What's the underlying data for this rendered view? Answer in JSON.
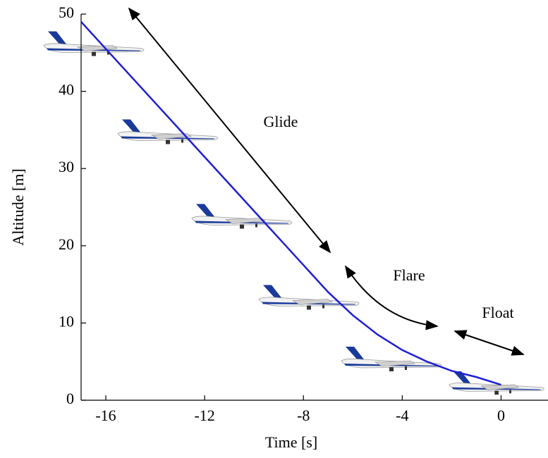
{
  "chart_data": {
    "type": "line",
    "x_label": "Time [s]",
    "y_label": "Altitude [m]",
    "x": [
      -17,
      -16,
      -15,
      -14,
      -13,
      -12,
      -11,
      -10,
      -9,
      -8,
      -7,
      -6,
      -5,
      -4,
      -3,
      -2,
      -1,
      0
    ],
    "series": [
      {
        "color": "#1f1fd6",
        "values": [
          49,
          45.5,
          42,
          38.5,
          35,
          31.5,
          28,
          24.5,
          21,
          17.5,
          14,
          11,
          8.5,
          6.5,
          5,
          3.8,
          3,
          2
        ]
      }
    ],
    "xlim": [
      -17,
      1.9
    ],
    "ylim": [
      0,
      50
    ],
    "xticks": [
      -16,
      -12,
      -8,
      -4,
      0
    ],
    "yticks": [
      0,
      10,
      20,
      30,
      40,
      50
    ],
    "annotations": [
      "Glide",
      "Flare",
      "Float"
    ]
  }
}
